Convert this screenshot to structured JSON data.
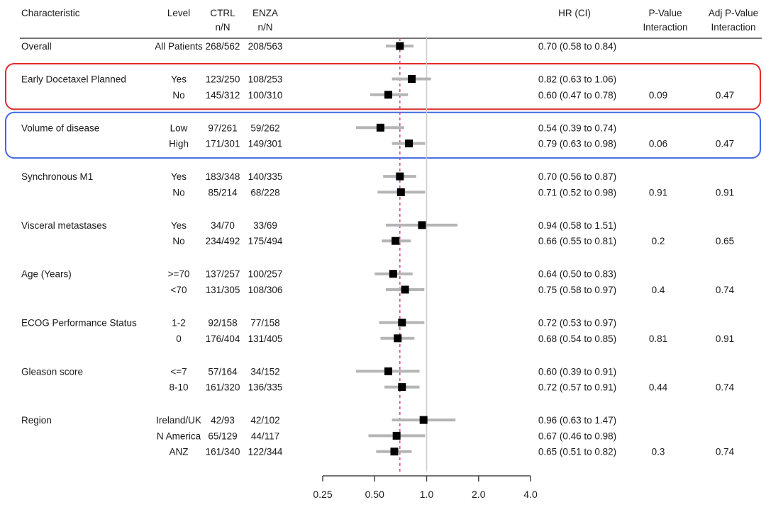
{
  "header": {
    "characteristic": "Characteristic",
    "level": "Level",
    "ctrl": [
      "CTRL",
      "n/N"
    ],
    "enza": [
      "ENZA",
      "n/N"
    ],
    "hr": "HR (CI)",
    "p": [
      "P-Value",
      "Interaction"
    ],
    "adjp": [
      "Adj P-Value",
      "Interaction"
    ]
  },
  "colors": {
    "text": "#1a1a1a",
    "marker": "#000000",
    "ci_bar": "#b5b5b5",
    "axis": "#474747",
    "reference_line": "#cccccc",
    "overall_dashed_line": "#de3d8c",
    "red_highlight_box": "#e22b2b",
    "blue_highlight_box": "#4169e1"
  },
  "chart_data": {
    "type": "forest",
    "x_axis": {
      "scale": "log2",
      "tick_labels": [
        "0.25",
        "0.50",
        "1.0",
        "2.0",
        "4.0"
      ],
      "tick_values": [
        0.25,
        0.5,
        1.0,
        2.0,
        4.0
      ],
      "range": [
        0.25,
        4.0
      ]
    },
    "reference_line": {
      "value": 1.0,
      "style": "solid"
    },
    "overall_line": {
      "value": 0.7,
      "style": "dashed"
    },
    "groups": [
      {
        "characteristic": "Overall",
        "highlight_box": null,
        "rows": [
          {
            "level": "All Patients",
            "ctrl_nN": "268/562",
            "enza_nN": "208/563",
            "hr": 0.7,
            "ci_low": 0.58,
            "ci_high": 0.84,
            "hr_ci_text": "0.70 (0.58 to 0.84)",
            "p_interaction": "",
            "adj_p_interaction": ""
          }
        ]
      },
      {
        "characteristic": "Early Docetaxel Planned",
        "highlight_box": "red_highlight_box",
        "rows": [
          {
            "level": "Yes",
            "ctrl_nN": "123/250",
            "enza_nN": "108/253",
            "hr": 0.82,
            "ci_low": 0.63,
            "ci_high": 1.06,
            "hr_ci_text": "0.82 (0.63 to 1.06)",
            "p_interaction": "",
            "adj_p_interaction": ""
          },
          {
            "level": "No",
            "ctrl_nN": "145/312",
            "enza_nN": "100/310",
            "hr": 0.6,
            "ci_low": 0.47,
            "ci_high": 0.78,
            "hr_ci_text": "0.60 (0.47 to 0.78)",
            "p_interaction": "0.09",
            "adj_p_interaction": "0.47"
          }
        ]
      },
      {
        "characteristic": "Volume of disease",
        "highlight_box": "blue_highlight_box",
        "rows": [
          {
            "level": "Low",
            "ctrl_nN": "97/261",
            "enza_nN": "59/262",
            "hr": 0.54,
            "ci_low": 0.39,
            "ci_high": 0.74,
            "hr_ci_text": "0.54 (0.39 to 0.74)",
            "p_interaction": "",
            "adj_p_interaction": ""
          },
          {
            "level": "High",
            "ctrl_nN": "171/301",
            "enza_nN": "149/301",
            "hr": 0.79,
            "ci_low": 0.63,
            "ci_high": 0.98,
            "hr_ci_text": "0.79 (0.63 to 0.98)",
            "p_interaction": "0.06",
            "adj_p_interaction": "0.47"
          }
        ]
      },
      {
        "characteristic": "Synchronous M1",
        "highlight_box": null,
        "rows": [
          {
            "level": "Yes",
            "ctrl_nN": "183/348",
            "enza_nN": "140/335",
            "hr": 0.7,
            "ci_low": 0.56,
            "ci_high": 0.87,
            "hr_ci_text": "0.70 (0.56 to 0.87)",
            "p_interaction": "",
            "adj_p_interaction": ""
          },
          {
            "level": "No",
            "ctrl_nN": "85/214",
            "enza_nN": "68/228",
            "hr": 0.71,
            "ci_low": 0.52,
            "ci_high": 0.98,
            "hr_ci_text": "0.71 (0.52 to 0.98)",
            "p_interaction": "0.91",
            "adj_p_interaction": "0.91"
          }
        ]
      },
      {
        "characteristic": "Visceral metastases",
        "highlight_box": null,
        "rows": [
          {
            "level": "Yes",
            "ctrl_nN": "34/70",
            "enza_nN": "33/69",
            "hr": 0.94,
            "ci_low": 0.58,
            "ci_high": 1.51,
            "hr_ci_text": "0.94 (0.58 to 1.51)",
            "p_interaction": "",
            "adj_p_interaction": ""
          },
          {
            "level": "No",
            "ctrl_nN": "234/492",
            "enza_nN": "175/494",
            "hr": 0.66,
            "ci_low": 0.55,
            "ci_high": 0.81,
            "hr_ci_text": "0.66 (0.55 to 0.81)",
            "p_interaction": "0.2",
            "adj_p_interaction": "0.65"
          }
        ]
      },
      {
        "characteristic": "Age (Years)",
        "highlight_box": null,
        "rows": [
          {
            "level": ">=70",
            "ctrl_nN": "137/257",
            "enza_nN": "100/257",
            "hr": 0.64,
            "ci_low": 0.5,
            "ci_high": 0.83,
            "hr_ci_text": "0.64 (0.50 to 0.83)",
            "p_interaction": "",
            "adj_p_interaction": ""
          },
          {
            "level": "<70",
            "ctrl_nN": "131/305",
            "enza_nN": "108/306",
            "hr": 0.75,
            "ci_low": 0.58,
            "ci_high": 0.97,
            "hr_ci_text": "0.75 (0.58 to 0.97)",
            "p_interaction": "0.4",
            "adj_p_interaction": "0.74"
          }
        ]
      },
      {
        "characteristic": "ECOG Performance Status",
        "highlight_box": null,
        "rows": [
          {
            "level": "1-2",
            "ctrl_nN": "92/158",
            "enza_nN": "77/158",
            "hr": 0.72,
            "ci_low": 0.53,
            "ci_high": 0.97,
            "hr_ci_text": "0.72 (0.53 to 0.97)",
            "p_interaction": "",
            "adj_p_interaction": ""
          },
          {
            "level": "0",
            "ctrl_nN": "176/404",
            "enza_nN": "131/405",
            "hr": 0.68,
            "ci_low": 0.54,
            "ci_high": 0.85,
            "hr_ci_text": "0.68 (0.54 to 0.85)",
            "p_interaction": "0.81",
            "adj_p_interaction": "0.91"
          }
        ]
      },
      {
        "characteristic": "Gleason score",
        "highlight_box": null,
        "rows": [
          {
            "level": "<=7",
            "ctrl_nN": "57/164",
            "enza_nN": "34/152",
            "hr": 0.6,
            "ci_low": 0.39,
            "ci_high": 0.91,
            "hr_ci_text": "0.60 (0.39 to 0.91)",
            "p_interaction": "",
            "adj_p_interaction": ""
          },
          {
            "level": "8-10",
            "ctrl_nN": "161/320",
            "enza_nN": "136/335",
            "hr": 0.72,
            "ci_low": 0.57,
            "ci_high": 0.91,
            "hr_ci_text": "0.72 (0.57 to 0.91)",
            "p_interaction": "0.44",
            "adj_p_interaction": "0.74"
          }
        ]
      },
      {
        "characteristic": "Region",
        "highlight_box": null,
        "rows": [
          {
            "level": "Ireland/UK",
            "ctrl_nN": "42/93",
            "enza_nN": "42/102",
            "hr": 0.96,
            "ci_low": 0.63,
            "ci_high": 1.47,
            "hr_ci_text": "0.96 (0.63 to 1.47)",
            "p_interaction": "",
            "adj_p_interaction": ""
          },
          {
            "level": "N America",
            "ctrl_nN": "65/129",
            "enza_nN": "44/117",
            "hr": 0.67,
            "ci_low": 0.46,
            "ci_high": 0.98,
            "hr_ci_text": "0.67 (0.46 to 0.98)",
            "p_interaction": "",
            "adj_p_interaction": ""
          },
          {
            "level": "ANZ",
            "ctrl_nN": "161/340",
            "enza_nN": "122/344",
            "hr": 0.65,
            "ci_low": 0.51,
            "ci_high": 0.82,
            "hr_ci_text": "0.65 (0.51 to 0.82)",
            "p_interaction": "0.3",
            "adj_p_interaction": "0.74"
          }
        ]
      }
    ]
  }
}
